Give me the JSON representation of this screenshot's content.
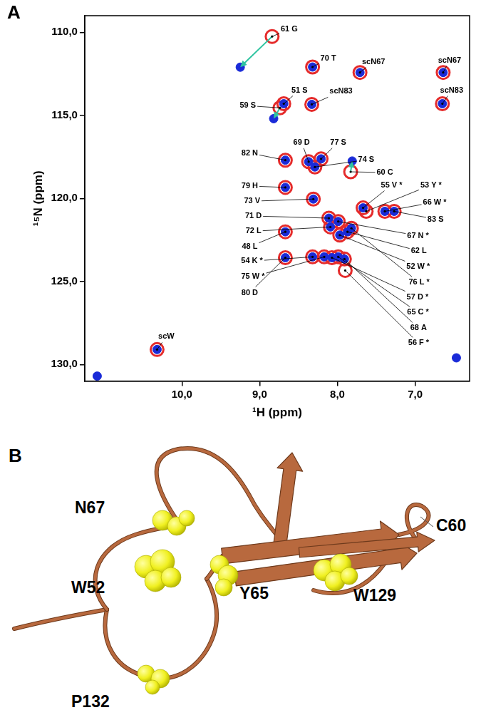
{
  "panel_labels": [
    "A",
    "B"
  ],
  "chart_data": {
    "type": "scatter",
    "x_label": "¹H (ppm)",
    "y_label": "¹⁵N (ppm)",
    "xlim": [
      11.25,
      6.3
    ],
    "ylim": [
      131,
      109
    ],
    "xticks": [
      {
        "value": 10,
        "label": "10,0"
      },
      {
        "value": 9,
        "label": "9,0"
      },
      {
        "value": 8,
        "label": "8,0"
      },
      {
        "value": 7,
        "label": "7,0"
      }
    ],
    "yticks": [
      {
        "value": 110,
        "label": "110,0"
      },
      {
        "value": 115,
        "label": "115,0"
      },
      {
        "value": 120,
        "label": "120,0"
      },
      {
        "value": 125,
        "label": "125,0"
      },
      {
        "value": 130,
        "label": "130,0"
      }
    ],
    "grid": false,
    "series": [
      {
        "color": "#e52b2b",
        "marker": "circle",
        "values": [
          {
            "x": 8.84,
            "y": 110.25
          },
          {
            "x": 8.32,
            "y": 112.09
          },
          {
            "x": 7.71,
            "y": 112.42
          },
          {
            "x": 6.64,
            "y": 112.42
          },
          {
            "x": 8.69,
            "y": 114.3
          },
          {
            "x": 8.74,
            "y": 114.55
          },
          {
            "x": 8.33,
            "y": 114.34
          },
          {
            "x": 6.65,
            "y": 114.3
          },
          {
            "x": 8.67,
            "y": 117.7
          },
          {
            "x": 8.37,
            "y": 117.79
          },
          {
            "x": 8.21,
            "y": 117.62
          },
          {
            "x": 8.29,
            "y": 118.11
          },
          {
            "x": 7.83,
            "y": 118.4
          },
          {
            "x": 8.67,
            "y": 119.34
          },
          {
            "x": 8.31,
            "y": 120.04
          },
          {
            "x": 7.67,
            "y": 120.57
          },
          {
            "x": 7.63,
            "y": 120.78
          },
          {
            "x": 7.39,
            "y": 120.78
          },
          {
            "x": 7.27,
            "y": 120.78
          },
          {
            "x": 7.99,
            "y": 121.39
          },
          {
            "x": 8.11,
            "y": 121.19
          },
          {
            "x": 8.09,
            "y": 121.72
          },
          {
            "x": 7.87,
            "y": 122.01
          },
          {
            "x": 8.67,
            "y": 122.01
          },
          {
            "x": 7.97,
            "y": 122.21
          },
          {
            "x": 7.82,
            "y": 121.8
          },
          {
            "x": 8.32,
            "y": 123.52
          },
          {
            "x": 8.17,
            "y": 123.52
          },
          {
            "x": 8.07,
            "y": 123.57
          },
          {
            "x": 7.99,
            "y": 123.52
          },
          {
            "x": 8.67,
            "y": 123.57
          },
          {
            "x": 7.91,
            "y": 123.65
          },
          {
            "x": 7.9,
            "y": 124.34
          },
          {
            "x": 10.32,
            "y": 129.1
          }
        ]
      },
      {
        "color": "#1a2bd8",
        "marker": "circle",
        "values": [
          {
            "x": 9.25,
            "y": 112.1
          },
          {
            "x": 8.32,
            "y": 112.09
          },
          {
            "x": 7.71,
            "y": 112.42
          },
          {
            "x": 6.64,
            "y": 112.42
          },
          {
            "x": 8.69,
            "y": 114.3
          },
          {
            "x": 8.82,
            "y": 115.2
          },
          {
            "x": 8.33,
            "y": 114.34
          },
          {
            "x": 6.65,
            "y": 114.3
          },
          {
            "x": 8.67,
            "y": 117.7
          },
          {
            "x": 8.37,
            "y": 117.79
          },
          {
            "x": 8.21,
            "y": 117.62
          },
          {
            "x": 8.29,
            "y": 118.11
          },
          {
            "x": 7.81,
            "y": 117.75
          },
          {
            "x": 8.67,
            "y": 119.34
          },
          {
            "x": 8.31,
            "y": 120.04
          },
          {
            "x": 7.67,
            "y": 120.57
          },
          {
            "x": 7.39,
            "y": 120.78
          },
          {
            "x": 7.27,
            "y": 120.78
          },
          {
            "x": 7.99,
            "y": 121.39
          },
          {
            "x": 8.11,
            "y": 121.19
          },
          {
            "x": 8.09,
            "y": 121.72
          },
          {
            "x": 7.87,
            "y": 122.01
          },
          {
            "x": 8.67,
            "y": 122.01
          },
          {
            "x": 7.97,
            "y": 122.21
          },
          {
            "x": 7.82,
            "y": 121.8
          },
          {
            "x": 8.32,
            "y": 123.52
          },
          {
            "x": 8.17,
            "y": 123.52
          },
          {
            "x": 8.07,
            "y": 123.57
          },
          {
            "x": 7.99,
            "y": 123.52
          },
          {
            "x": 8.67,
            "y": 123.57
          },
          {
            "x": 7.91,
            "y": 123.65
          },
          {
            "x": 10.32,
            "y": 129.1
          },
          {
            "x": 11.09,
            "y": 130.7
          },
          {
            "x": 6.47,
            "y": 129.6
          }
        ]
      }
    ],
    "annotations": [
      {
        "text": "61 G",
        "x": 8.84,
        "y": 110.25
      },
      {
        "text": "70 T",
        "x": 8.32,
        "y": 112.09
      },
      {
        "text": "scN67",
        "x": 7.71,
        "y": 112.42
      },
      {
        "text": "scN67",
        "x": 6.64,
        "y": 112.42
      },
      {
        "text": "51 S",
        "x": 8.69,
        "y": 114.3
      },
      {
        "text": "59 S",
        "x": 8.74,
        "y": 114.55
      },
      {
        "text": "scN83",
        "x": 8.33,
        "y": 114.34
      },
      {
        "text": "scN83",
        "x": 6.65,
        "y": 114.3
      },
      {
        "text": "82 N",
        "x": 8.67,
        "y": 117.7
      },
      {
        "text": "69 D",
        "x": 8.37,
        "y": 117.79
      },
      {
        "text": "77 S",
        "x": 8.21,
        "y": 117.62
      },
      {
        "text": "74 S",
        "x": 8.29,
        "y": 118.11
      },
      {
        "text": "60 C",
        "x": 7.83,
        "y": 118.4
      },
      {
        "text": "79 H",
        "x": 8.67,
        "y": 119.34
      },
      {
        "text": "73 V",
        "x": 8.31,
        "y": 120.04
      },
      {
        "text": "55 V *",
        "x": 7.67,
        "y": 120.57
      },
      {
        "text": "53 Y *",
        "x": 7.63,
        "y": 120.78
      },
      {
        "text": "66 W *",
        "x": 7.39,
        "y": 120.78
      },
      {
        "text": "83 S",
        "x": 7.27,
        "y": 120.78
      },
      {
        "text": "67 N *",
        "x": 7.99,
        "y": 121.39
      },
      {
        "text": "71 D",
        "x": 8.11,
        "y": 121.19
      },
      {
        "text": "72 L",
        "x": 8.09,
        "y": 121.72
      },
      {
        "text": "62 L",
        "x": 7.87,
        "y": 122.01
      },
      {
        "text": "48 L",
        "x": 8.67,
        "y": 122.01
      },
      {
        "text": "52 W *",
        "x": 7.97,
        "y": 122.21
      },
      {
        "text": "76 L *",
        "x": 7.82,
        "y": 121.8
      },
      {
        "text": "54 K *",
        "x": 8.32,
        "y": 123.52
      },
      {
        "text": "75 W *",
        "x": 8.17,
        "y": 123.52
      },
      {
        "text": "57 D *",
        "x": 8.07,
        "y": 123.57
      },
      {
        "text": "65 C *",
        "x": 7.99,
        "y": 123.52
      },
      {
        "text": "80 D",
        "x": 8.67,
        "y": 123.57
      },
      {
        "text": "68 A",
        "x": 7.91,
        "y": 123.65
      },
      {
        "text": "56 F *",
        "x": 7.9,
        "y": 124.34
      },
      {
        "text": "scW",
        "x": 10.32,
        "y": 129.1
      }
    ],
    "arrows": [
      {
        "from": {
          "x": 8.84,
          "y": 110.25
        },
        "to": {
          "x": 9.25,
          "y": 112.1
        },
        "color": "#2ec4a0"
      },
      {
        "from": {
          "x": 8.74,
          "y": 114.55
        },
        "to": {
          "x": 8.82,
          "y": 115.2
        },
        "color": "#2ec4a0"
      },
      {
        "from": {
          "x": 7.83,
          "y": 118.4
        },
        "to": {
          "x": 7.81,
          "y": 117.75
        },
        "color": "#2ec4a0"
      }
    ]
  },
  "structure": {
    "residues": [
      {
        "text": "N67"
      },
      {
        "text": "W52"
      },
      {
        "text": "Y65"
      },
      {
        "text": "W129"
      },
      {
        "text": "P132"
      },
      {
        "text": "C60"
      }
    ]
  }
}
